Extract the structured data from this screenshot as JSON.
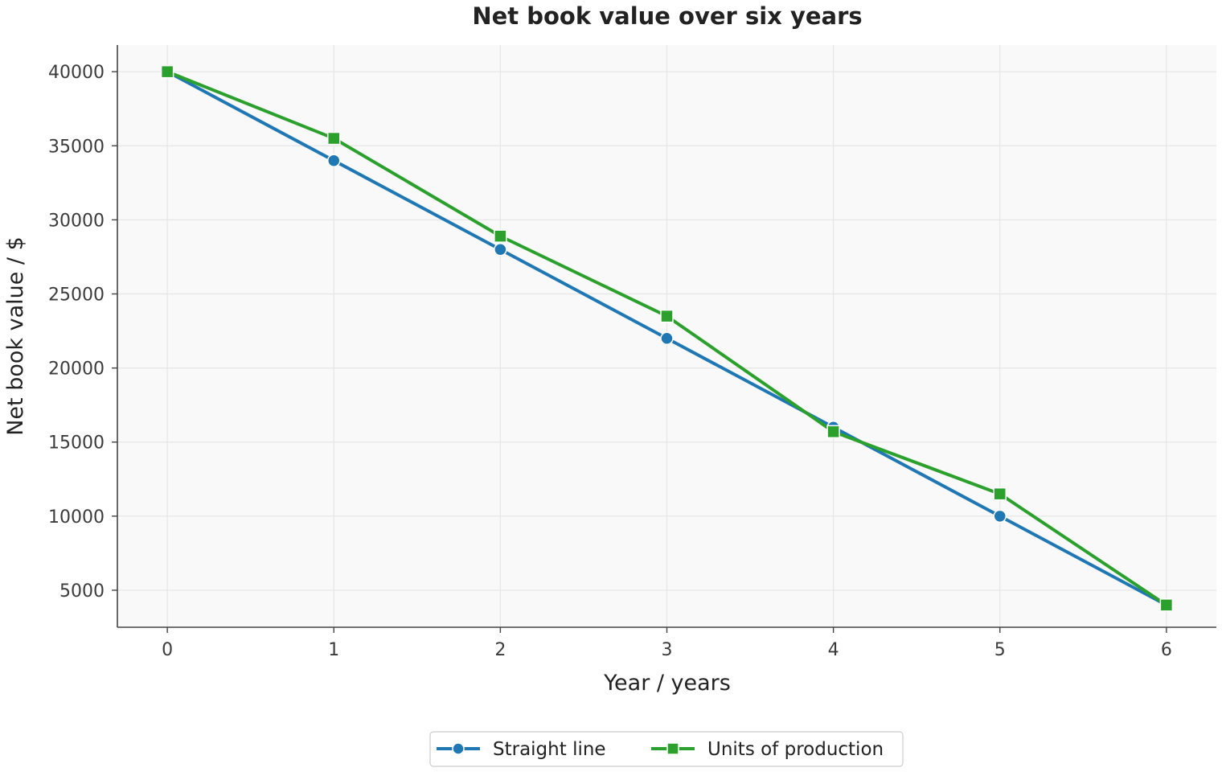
{
  "chart_data": {
    "type": "line",
    "title": "Net book value over six years",
    "xlabel": "Year / years",
    "ylabel": "Net book value / $",
    "x": [
      0,
      1,
      2,
      3,
      4,
      5,
      6
    ],
    "xlim": [
      -0.3,
      6.3
    ],
    "ylim": [
      2500,
      41800
    ],
    "x_ticks": [
      0,
      1,
      2,
      3,
      4,
      5,
      6
    ],
    "y_ticks": [
      5000,
      10000,
      15000,
      20000,
      25000,
      30000,
      35000,
      40000
    ],
    "grid": true,
    "legend_position": "bottom-center",
    "series": [
      {
        "name": "Straight line",
        "values": [
          40000,
          34000,
          28000,
          22000,
          16000,
          10000,
          4000
        ],
        "color": "#1f77b4",
        "marker": "circle"
      },
      {
        "name": "Units of production",
        "values": [
          40000,
          35500,
          28900,
          23500,
          15700,
          11500,
          4000
        ],
        "color": "#2ca02c",
        "marker": "square"
      }
    ]
  }
}
